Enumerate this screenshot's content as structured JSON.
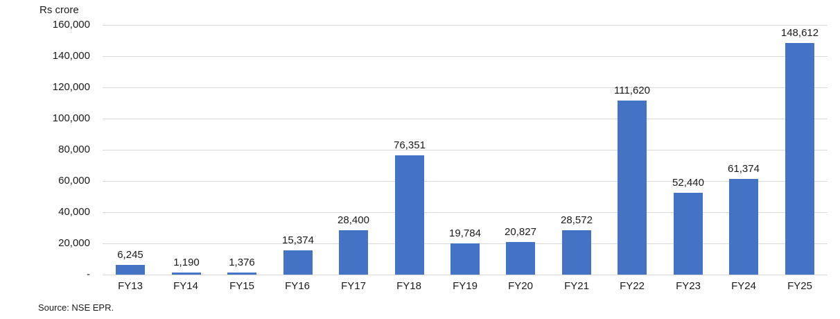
{
  "chart_data": {
    "type": "bar",
    "unit_label": "Rs crore",
    "categories": [
      "FY13",
      "FY14",
      "FY15",
      "FY16",
      "FY17",
      "FY18",
      "FY19",
      "FY20",
      "FY21",
      "FY22",
      "FY23",
      "FY24",
      "FY25"
    ],
    "values": [
      6245,
      1190,
      1376,
      15374,
      28400,
      76351,
      19784,
      20827,
      28572,
      111620,
      52440,
      61374,
      148612
    ],
    "value_labels": [
      "6,245",
      "1,190",
      "1,376",
      "15,374",
      "28,400",
      "76,351",
      "19,784",
      "20,827",
      "28,572",
      "111,620",
      "52,440",
      "61,374",
      "148,612"
    ],
    "y_axis": {
      "min": 0,
      "max": 160000,
      "step": 20000,
      "tick_labels": [
        "-",
        "20,000",
        "40,000",
        "60,000",
        "80,000",
        "100,000",
        "120,000",
        "140,000",
        "160,000"
      ]
    },
    "legend": "none",
    "grid": "horizontal",
    "bar_color": "#4472C4",
    "gridline_color": "#D9D9D9",
    "source": "Source: NSE EPR."
  }
}
